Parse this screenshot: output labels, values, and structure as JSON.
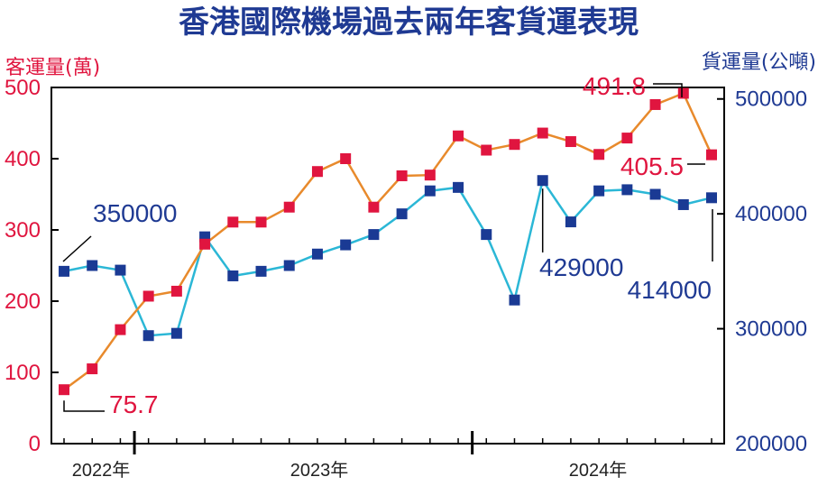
{
  "chart_data": {
    "type": "line",
    "title": "香港國際機場過去兩年客貨運表現",
    "left_axis": {
      "label": "客運量(萬)",
      "ticks": [
        "0",
        "100",
        "200",
        "300",
        "400",
        "500"
      ],
      "range": [
        0,
        500
      ]
    },
    "right_axis": {
      "label": "貨運量(公噸)",
      "ticks": [
        "200000",
        "300000",
        "400000",
        "500000"
      ],
      "range": [
        200000,
        510000
      ]
    },
    "x_labels": [
      "2022年",
      "2023年",
      "2024年"
    ],
    "series": [
      {
        "axis": "left",
        "color": "#e0153f",
        "line_color": "#e88a2c",
        "values": [
          75.7,
          105,
          160,
          207,
          214,
          280,
          311,
          311,
          332,
          382,
          400,
          332,
          376,
          377,
          432,
          412,
          420,
          436,
          424,
          406,
          429,
          476,
          491.8,
          405.5
        ]
      },
      {
        "axis": "right",
        "color": "#1a3a94",
        "line_color": "#2bb7d6",
        "values": [
          350000,
          355000,
          351000,
          294000,
          296000,
          380000,
          346000,
          350000,
          355000,
          365000,
          373000,
          382000,
          400000,
          420000,
          423000,
          382000,
          325000,
          429000,
          393000,
          420000,
          421000,
          417000,
          408000,
          414000
        ]
      }
    ],
    "annotations": [
      {
        "text": "75.7",
        "series": 0,
        "index": 0
      },
      {
        "text": "491.8",
        "series": 0,
        "index": 22
      },
      {
        "text": "405.5",
        "series": 0,
        "index": 23
      },
      {
        "text": "350000",
        "series": 1,
        "index": 0
      },
      {
        "text": "429000",
        "series": 1,
        "index": 17
      },
      {
        "text": "414000",
        "series": 1,
        "index": 23
      }
    ]
  }
}
